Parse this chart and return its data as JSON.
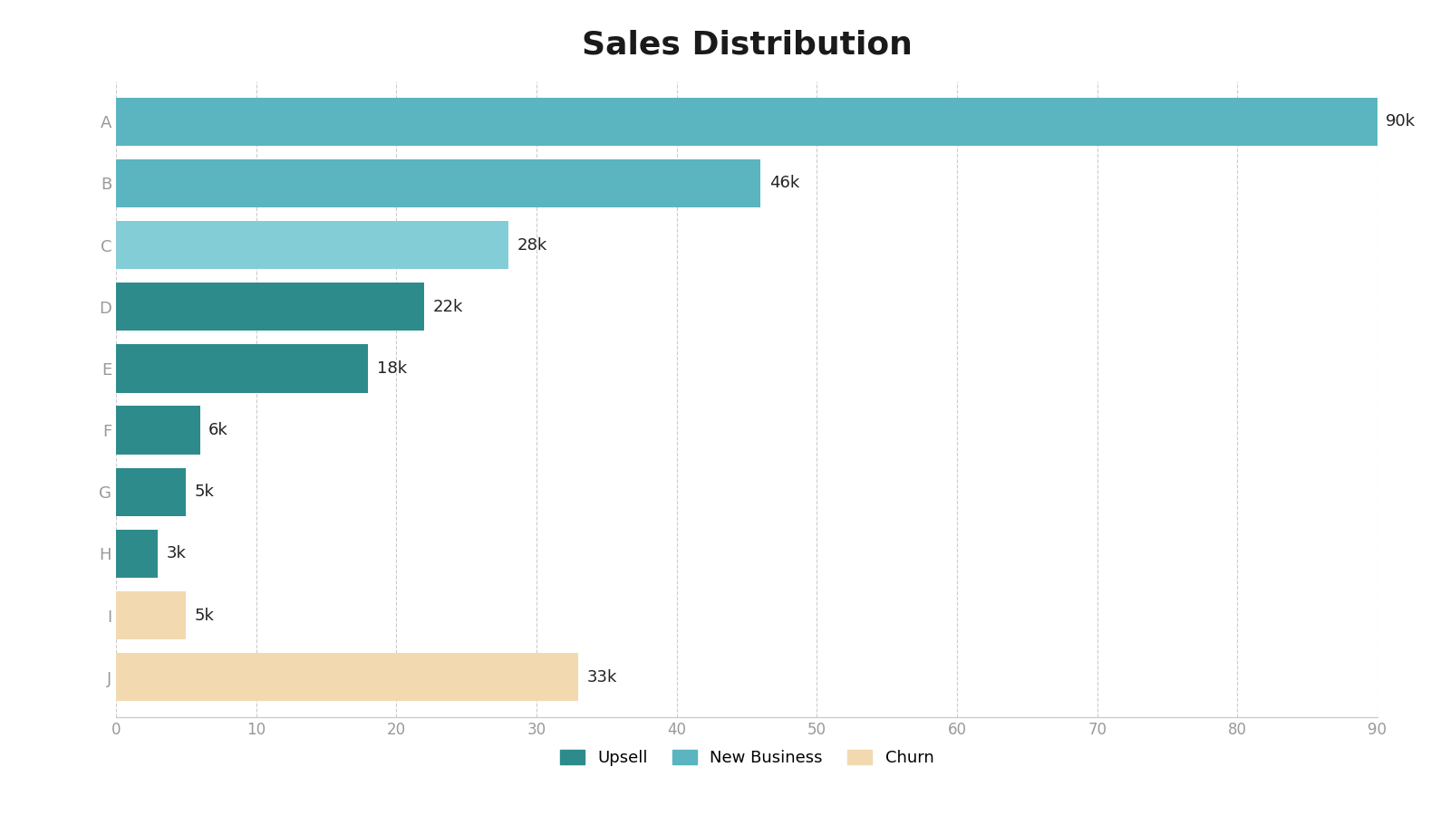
{
  "title": "Sales Distribution",
  "categories": [
    "A",
    "B",
    "C",
    "D",
    "E",
    "F",
    "G",
    "H",
    "I",
    "J"
  ],
  "values": [
    90,
    46,
    28,
    22,
    18,
    6,
    5,
    3,
    5,
    33
  ],
  "labels": [
    "90k",
    "46k",
    "28k",
    "22k",
    "18k",
    "6k",
    "5k",
    "3k",
    "5k",
    "33k"
  ],
  "colors": [
    "#5ab5c0",
    "#5ab5c0",
    "#83cdd6",
    "#2e8b8b",
    "#2e8b8b",
    "#2e8b8b",
    "#2e8b8b",
    "#2e8b8b",
    "#f2d9b0",
    "#f2d9b0"
  ],
  "legend": [
    {
      "label": "Upsell",
      "color": "#2e8b8b"
    },
    {
      "label": "New Business",
      "color": "#5ab5c0"
    },
    {
      "label": "Churn",
      "color": "#f2d9b0"
    }
  ],
  "xlim": [
    0,
    90
  ],
  "xticks": [
    0,
    10,
    20,
    30,
    40,
    50,
    60,
    70,
    80,
    90
  ],
  "title_fontsize": 26,
  "label_fontsize": 13,
  "tick_fontsize": 12,
  "bar_height": 0.78,
  "background_color": "#ffffff",
  "grid_color": "#cccccc",
  "axis_label_color": "#999999"
}
